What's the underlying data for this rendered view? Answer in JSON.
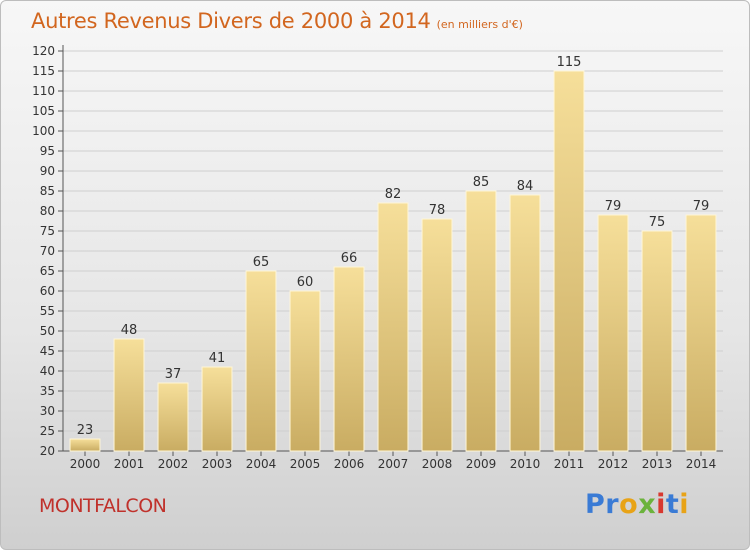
{
  "header": {
    "title": "Autres Revenus Divers de 2000 à 2014",
    "subtitle": "(en milliers d'€)"
  },
  "footer": {
    "commune": "MONTFALCON",
    "brand": "Proxiti",
    "brand_letters": [
      {
        "ch": "P",
        "color": "#3a7bd5"
      },
      {
        "ch": "r",
        "color": "#3a7bd5"
      },
      {
        "ch": "o",
        "color": "#e8a317"
      },
      {
        "ch": "x",
        "color": "#6bb33c"
      },
      {
        "ch": "i",
        "color": "#d8382f"
      },
      {
        "ch": "t",
        "color": "#3a7bd5"
      },
      {
        "ch": "i",
        "color": "#e8a317"
      }
    ]
  },
  "colors": {
    "title": "#d2661f",
    "commune": "#c0312b",
    "bar_top": "#f6df9a",
    "bar_bottom": "#c9ac62",
    "axis_text": "#333333",
    "grid": "#cfcfcf"
  },
  "chart_data": {
    "type": "bar",
    "title": "Autres Revenus Divers de 2000 à 2014",
    "subtitle": "(en milliers d'€)",
    "xlabel": "",
    "ylabel": "",
    "categories": [
      "2000",
      "2001",
      "2002",
      "2003",
      "2004",
      "2005",
      "2006",
      "2007",
      "2008",
      "2009",
      "2010",
      "2011",
      "2012",
      "2013",
      "2014"
    ],
    "values": [
      23,
      48,
      37,
      41,
      65,
      60,
      66,
      82,
      78,
      85,
      84,
      115,
      79,
      75,
      79
    ],
    "ylim": [
      20,
      120
    ],
    "yticks": [
      20,
      25,
      30,
      35,
      40,
      45,
      50,
      55,
      60,
      65,
      70,
      75,
      80,
      85,
      90,
      95,
      100,
      105,
      110,
      115,
      120
    ],
    "grid": true,
    "data_labels": true
  }
}
